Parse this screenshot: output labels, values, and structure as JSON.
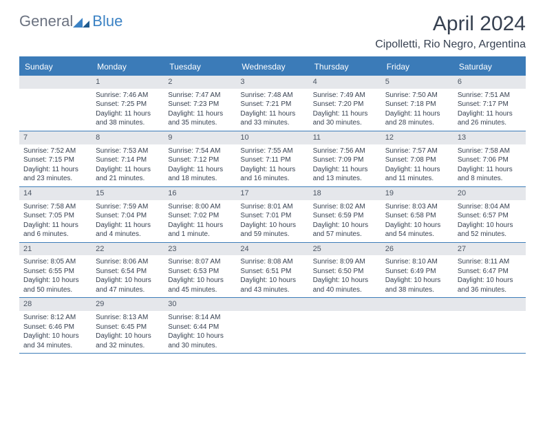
{
  "logo": {
    "text1": "General",
    "text2": "Blue"
  },
  "title": "April 2024",
  "location": "Cipolletti, Rio Negro, Argentina",
  "colors": {
    "brand_blue": "#3b7bb8",
    "header_text": "#ffffff",
    "daynum_bg": "#e5e7eb",
    "body_text": "#374151",
    "logo_gray": "#6b7280",
    "logo_blue": "#3b82c4"
  },
  "day_headers": [
    "Sunday",
    "Monday",
    "Tuesday",
    "Wednesday",
    "Thursday",
    "Friday",
    "Saturday"
  ],
  "weeks": [
    [
      {
        "day": "",
        "sunrise": "",
        "sunset": "",
        "daylight": ""
      },
      {
        "day": "1",
        "sunrise": "Sunrise: 7:46 AM",
        "sunset": "Sunset: 7:25 PM",
        "daylight": "Daylight: 11 hours and 38 minutes."
      },
      {
        "day": "2",
        "sunrise": "Sunrise: 7:47 AM",
        "sunset": "Sunset: 7:23 PM",
        "daylight": "Daylight: 11 hours and 35 minutes."
      },
      {
        "day": "3",
        "sunrise": "Sunrise: 7:48 AM",
        "sunset": "Sunset: 7:21 PM",
        "daylight": "Daylight: 11 hours and 33 minutes."
      },
      {
        "day": "4",
        "sunrise": "Sunrise: 7:49 AM",
        "sunset": "Sunset: 7:20 PM",
        "daylight": "Daylight: 11 hours and 30 minutes."
      },
      {
        "day": "5",
        "sunrise": "Sunrise: 7:50 AM",
        "sunset": "Sunset: 7:18 PM",
        "daylight": "Daylight: 11 hours and 28 minutes."
      },
      {
        "day": "6",
        "sunrise": "Sunrise: 7:51 AM",
        "sunset": "Sunset: 7:17 PM",
        "daylight": "Daylight: 11 hours and 26 minutes."
      }
    ],
    [
      {
        "day": "7",
        "sunrise": "Sunrise: 7:52 AM",
        "sunset": "Sunset: 7:15 PM",
        "daylight": "Daylight: 11 hours and 23 minutes."
      },
      {
        "day": "8",
        "sunrise": "Sunrise: 7:53 AM",
        "sunset": "Sunset: 7:14 PM",
        "daylight": "Daylight: 11 hours and 21 minutes."
      },
      {
        "day": "9",
        "sunrise": "Sunrise: 7:54 AM",
        "sunset": "Sunset: 7:12 PM",
        "daylight": "Daylight: 11 hours and 18 minutes."
      },
      {
        "day": "10",
        "sunrise": "Sunrise: 7:55 AM",
        "sunset": "Sunset: 7:11 PM",
        "daylight": "Daylight: 11 hours and 16 minutes."
      },
      {
        "day": "11",
        "sunrise": "Sunrise: 7:56 AM",
        "sunset": "Sunset: 7:09 PM",
        "daylight": "Daylight: 11 hours and 13 minutes."
      },
      {
        "day": "12",
        "sunrise": "Sunrise: 7:57 AM",
        "sunset": "Sunset: 7:08 PM",
        "daylight": "Daylight: 11 hours and 11 minutes."
      },
      {
        "day": "13",
        "sunrise": "Sunrise: 7:58 AM",
        "sunset": "Sunset: 7:06 PM",
        "daylight": "Daylight: 11 hours and 8 minutes."
      }
    ],
    [
      {
        "day": "14",
        "sunrise": "Sunrise: 7:58 AM",
        "sunset": "Sunset: 7:05 PM",
        "daylight": "Daylight: 11 hours and 6 minutes."
      },
      {
        "day": "15",
        "sunrise": "Sunrise: 7:59 AM",
        "sunset": "Sunset: 7:04 PM",
        "daylight": "Daylight: 11 hours and 4 minutes."
      },
      {
        "day": "16",
        "sunrise": "Sunrise: 8:00 AM",
        "sunset": "Sunset: 7:02 PM",
        "daylight": "Daylight: 11 hours and 1 minute."
      },
      {
        "day": "17",
        "sunrise": "Sunrise: 8:01 AM",
        "sunset": "Sunset: 7:01 PM",
        "daylight": "Daylight: 10 hours and 59 minutes."
      },
      {
        "day": "18",
        "sunrise": "Sunrise: 8:02 AM",
        "sunset": "Sunset: 6:59 PM",
        "daylight": "Daylight: 10 hours and 57 minutes."
      },
      {
        "day": "19",
        "sunrise": "Sunrise: 8:03 AM",
        "sunset": "Sunset: 6:58 PM",
        "daylight": "Daylight: 10 hours and 54 minutes."
      },
      {
        "day": "20",
        "sunrise": "Sunrise: 8:04 AM",
        "sunset": "Sunset: 6:57 PM",
        "daylight": "Daylight: 10 hours and 52 minutes."
      }
    ],
    [
      {
        "day": "21",
        "sunrise": "Sunrise: 8:05 AM",
        "sunset": "Sunset: 6:55 PM",
        "daylight": "Daylight: 10 hours and 50 minutes."
      },
      {
        "day": "22",
        "sunrise": "Sunrise: 8:06 AM",
        "sunset": "Sunset: 6:54 PM",
        "daylight": "Daylight: 10 hours and 47 minutes."
      },
      {
        "day": "23",
        "sunrise": "Sunrise: 8:07 AM",
        "sunset": "Sunset: 6:53 PM",
        "daylight": "Daylight: 10 hours and 45 minutes."
      },
      {
        "day": "24",
        "sunrise": "Sunrise: 8:08 AM",
        "sunset": "Sunset: 6:51 PM",
        "daylight": "Daylight: 10 hours and 43 minutes."
      },
      {
        "day": "25",
        "sunrise": "Sunrise: 8:09 AM",
        "sunset": "Sunset: 6:50 PM",
        "daylight": "Daylight: 10 hours and 40 minutes."
      },
      {
        "day": "26",
        "sunrise": "Sunrise: 8:10 AM",
        "sunset": "Sunset: 6:49 PM",
        "daylight": "Daylight: 10 hours and 38 minutes."
      },
      {
        "day": "27",
        "sunrise": "Sunrise: 8:11 AM",
        "sunset": "Sunset: 6:47 PM",
        "daylight": "Daylight: 10 hours and 36 minutes."
      }
    ],
    [
      {
        "day": "28",
        "sunrise": "Sunrise: 8:12 AM",
        "sunset": "Sunset: 6:46 PM",
        "daylight": "Daylight: 10 hours and 34 minutes."
      },
      {
        "day": "29",
        "sunrise": "Sunrise: 8:13 AM",
        "sunset": "Sunset: 6:45 PM",
        "daylight": "Daylight: 10 hours and 32 minutes."
      },
      {
        "day": "30",
        "sunrise": "Sunrise: 8:14 AM",
        "sunset": "Sunset: 6:44 PM",
        "daylight": "Daylight: 10 hours and 30 minutes."
      },
      {
        "day": "",
        "sunrise": "",
        "sunset": "",
        "daylight": ""
      },
      {
        "day": "",
        "sunrise": "",
        "sunset": "",
        "daylight": ""
      },
      {
        "day": "",
        "sunrise": "",
        "sunset": "",
        "daylight": ""
      },
      {
        "day": "",
        "sunrise": "",
        "sunset": "",
        "daylight": ""
      }
    ]
  ]
}
